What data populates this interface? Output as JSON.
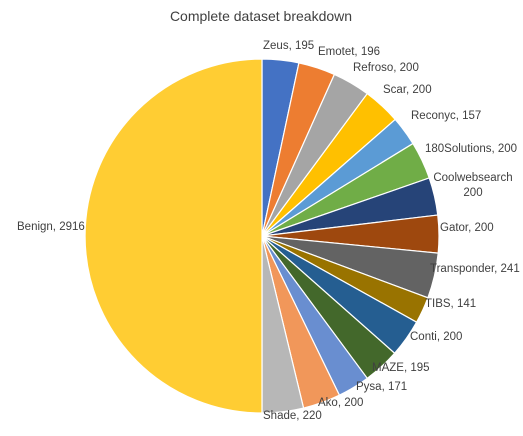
{
  "chart_data": {
    "type": "pie",
    "title": "Complete dataset breakdown",
    "data_labels_format": "{category}, {value}",
    "slices": [
      {
        "category": "Zeus",
        "value": 195,
        "color": "#4472C4"
      },
      {
        "category": "Emotet",
        "value": 196,
        "color": "#ED7D31"
      },
      {
        "category": "Refroso",
        "value": 200,
        "color": "#A5A5A5"
      },
      {
        "category": "Scar",
        "value": 200,
        "color": "#FFC000"
      },
      {
        "category": "Reconyc",
        "value": 157,
        "color": "#5B9BD5"
      },
      {
        "category": "180Solutions",
        "value": 200,
        "color": "#70AD47"
      },
      {
        "category": "Coolwebsearch",
        "value": 200,
        "color": "#264478"
      },
      {
        "category": "Gator",
        "value": 200,
        "color": "#9E480E"
      },
      {
        "category": "Transponder",
        "value": 241,
        "color": "#636363"
      },
      {
        "category": "TIBS",
        "value": 141,
        "color": "#997300"
      },
      {
        "category": "Conti",
        "value": 200,
        "color": "#255E91"
      },
      {
        "category": "MAZE",
        "value": 195,
        "color": "#43682B"
      },
      {
        "category": "Pysa",
        "value": 171,
        "color": "#698ED0"
      },
      {
        "category": "Ako",
        "value": 200,
        "color": "#F1975A"
      },
      {
        "category": "Shade",
        "value": 220,
        "color": "#B7B7B7"
      },
      {
        "category": "Benign",
        "value": 2916,
        "color": "#FFCD33"
      }
    ],
    "start_angle_deg": 0,
    "direction": "clockwise",
    "legend": "none"
  }
}
